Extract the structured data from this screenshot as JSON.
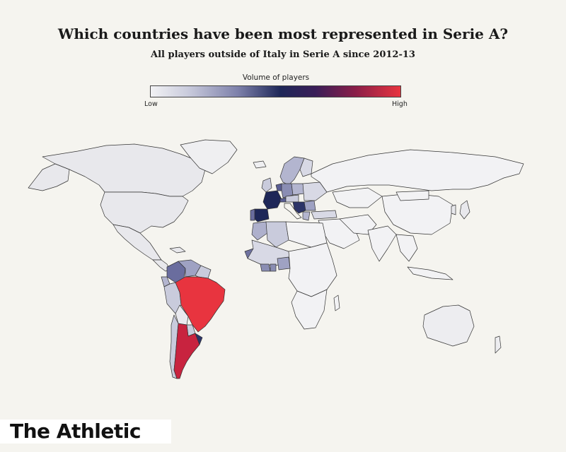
{
  "title": "Which countries have been most represented in Serie A?",
  "subtitle": "All players outside of Italy in Serie A since 2012-13",
  "legend": {
    "title": "Volume of players",
    "low_label": "Low",
    "high_label": "High",
    "colors": [
      "#f2f2f4",
      "#c9cbdc",
      "#7d80aa",
      "#1e2758",
      "#3a1e58",
      "#8a1e48",
      "#e8343f"
    ]
  },
  "map_data": {
    "type": "choropleth",
    "measure": "volume of players",
    "scale": "low to high",
    "countries": [
      {
        "name": "Brazil",
        "level": "highest",
        "color": "#e8343f"
      },
      {
        "name": "Argentina",
        "level": "very high",
        "color": "#c8233f"
      },
      {
        "name": "France",
        "level": "high",
        "color": "#1e2758"
      },
      {
        "name": "Spain",
        "level": "high",
        "color": "#1e2758"
      },
      {
        "name": "Uruguay",
        "level": "high",
        "color": "#2c3468"
      },
      {
        "name": "Croatia",
        "level": "high",
        "color": "#2c3468"
      },
      {
        "name": "Colombia",
        "level": "medium",
        "color": "#6a6d9e"
      },
      {
        "name": "Senegal",
        "level": "medium",
        "color": "#6f72a1"
      },
      {
        "name": "Switzerland",
        "level": "medium",
        "color": "#5a5e93"
      },
      {
        "name": "Belgium",
        "level": "medium",
        "color": "#5a5e93"
      },
      {
        "name": "Netherlands",
        "level": "medium",
        "color": "#6a6d9e"
      },
      {
        "name": "Germany",
        "level": "medium",
        "color": "#8a8db3"
      },
      {
        "name": "Portugal",
        "level": "medium",
        "color": "#6a6d9e"
      },
      {
        "name": "Serbia",
        "level": "medium",
        "color": "#6a6d9e"
      },
      {
        "name": "Ivory Coast",
        "level": "medium",
        "color": "#8a8db3"
      },
      {
        "name": "Ghana",
        "level": "medium",
        "color": "#8a8db3"
      },
      {
        "name": "Nigeria",
        "level": "medium",
        "color": "#9fa2c3"
      },
      {
        "name": "Venezuela",
        "level": "medium",
        "color": "#9fa2c3"
      },
      {
        "name": "Poland",
        "level": "low-medium",
        "color": "#b3b5cf"
      },
      {
        "name": "Sweden",
        "level": "low-medium",
        "color": "#b3b5cf"
      },
      {
        "name": "Denmark",
        "level": "low-medium",
        "color": "#b3b5cf"
      },
      {
        "name": "Morocco",
        "level": "low-medium",
        "color": "#aeb0cc"
      },
      {
        "name": "Algeria",
        "level": "low-medium",
        "color": "#c9cbdc"
      },
      {
        "name": "Chile",
        "level": "low-medium",
        "color": "#c9cbdc"
      },
      {
        "name": "Peru",
        "level": "low-medium",
        "color": "#c9cbdc"
      },
      {
        "name": "Paraguay",
        "level": "low-medium",
        "color": "#c9cbdc"
      },
      {
        "name": "United States",
        "level": "low",
        "color": "#e8e8ec"
      },
      {
        "name": "Canada",
        "level": "low",
        "color": "#e8e8ec"
      },
      {
        "name": "Mexico",
        "level": "low",
        "color": "#e8e8ec"
      },
      {
        "name": "Australia",
        "level": "low",
        "color": "#ededf0"
      }
    ]
  }
}
